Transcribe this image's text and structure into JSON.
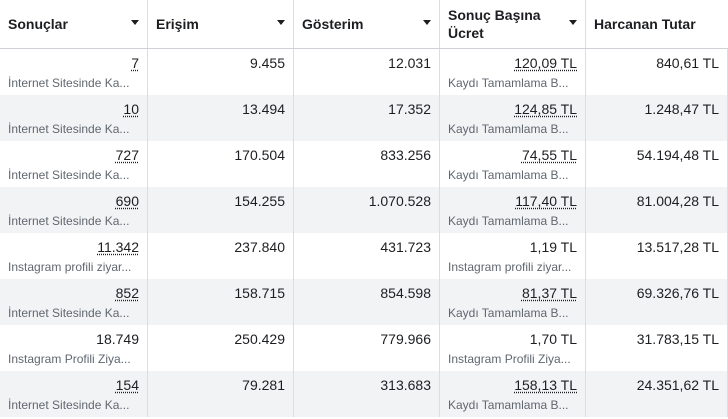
{
  "headers": [
    {
      "label": "Sonuçlar"
    },
    {
      "label": "Erişim"
    },
    {
      "label": "Gösterim"
    },
    {
      "label": "Sonuç Başına Ücret"
    },
    {
      "label": "Harcanan Tutar"
    }
  ],
  "rows": [
    {
      "results": "7",
      "results_sub": "İnternet Sitesinde Ka...",
      "reach": "9.455",
      "impressions": "12.031",
      "cpr": "120,09 TL",
      "cpr_sub": "Kaydı Tamamlama B...",
      "spent": "840,61 TL"
    },
    {
      "results": "10",
      "results_sub": "İnternet Sitesinde Ka...",
      "reach": "13.494",
      "impressions": "17.352",
      "cpr": "124,85 TL",
      "cpr_sub": "Kaydı Tamamlama B...",
      "spent": "1.248,47 TL"
    },
    {
      "results": "727",
      "results_sub": "İnternet Sitesinde Ka...",
      "reach": "170.504",
      "impressions": "833.256",
      "cpr": "74,55 TL",
      "cpr_sub": "Kaydı Tamamlama B...",
      "spent": "54.194,48 TL"
    },
    {
      "results": "690",
      "results_sub": "İnternet Sitesinde Ka...",
      "reach": "154.255",
      "impressions": "1.070.528",
      "cpr": "117,40 TL",
      "cpr_sub": "Kaydı Tamamlama B...",
      "spent": "81.004,28 TL"
    },
    {
      "results": "11.342",
      "results_sub": "Instagram profili ziyar...",
      "reach": "237.840",
      "impressions": "431.723",
      "cpr": "1,19 TL",
      "cpr_sub": "Instagram profili ziyar...",
      "spent": "13.517,28 TL"
    },
    {
      "results": "852",
      "results_sub": "İnternet Sitesinde Ka...",
      "reach": "158.715",
      "impressions": "854.598",
      "cpr": "81,37 TL",
      "cpr_sub": "Kaydı Tamamlama B...",
      "spent": "69.326,76 TL"
    },
    {
      "results": "18.749",
      "results_sub": "Instagram Profili Ziya...",
      "reach": "250.429",
      "impressions": "779.966",
      "cpr": "1,70 TL",
      "cpr_sub": "Instagram Profili Ziya...",
      "spent": "31.783,15 TL"
    },
    {
      "results": "154",
      "results_sub": "İnternet Sitesinde Ka...",
      "reach": "79.281",
      "impressions": "313.683",
      "cpr": "158,13 TL",
      "cpr_sub": "Kaydı Tamamlama B...",
      "spent": "24.351,62 TL"
    }
  ],
  "link_flags": {
    "results": [
      true,
      true,
      true,
      true,
      true,
      true,
      false,
      true
    ],
    "cpr": [
      true,
      true,
      true,
      true,
      false,
      true,
      false,
      true
    ]
  },
  "colors": {
    "header_border": "#cfd3d8",
    "row_alt": "#f2f3f5",
    "muted_text": "#606770"
  }
}
